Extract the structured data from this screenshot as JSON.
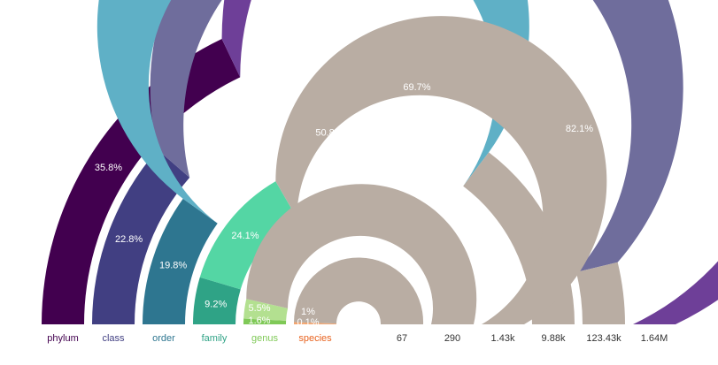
{
  "colors": {
    "remainder": "#b9ada3",
    "background": "#ffffff",
    "total_text": "#333333"
  },
  "chart_data": {
    "type": "radial-stacked-semicircle",
    "title": "",
    "unit": "percent",
    "rings": [
      {
        "category": "phylum",
        "segments": [
          35.8,
          82.1
        ],
        "segment_labels": [
          "35.8%",
          "82.1%"
        ],
        "colors": [
          "#42004f",
          "#6e3f98"
        ],
        "total": "1.64M"
      },
      {
        "category": "class",
        "segments": [
          22.8,
          69.7
        ],
        "segment_labels": [
          "22.8%",
          "69.7%"
        ],
        "colors": [
          "#413f82",
          "#6f6d9c"
        ],
        "total": "123.43k"
      },
      {
        "category": "order",
        "segments": [
          19.8,
          50.8
        ],
        "segment_labels": [
          "19.8%",
          "50.8%"
        ],
        "colors": [
          "#2e7690",
          "#5fb0c6"
        ],
        "total": "9.88k"
      },
      {
        "category": "family",
        "segments": [
          9.2,
          24.1
        ],
        "segment_labels": [
          "9.2%",
          "24.1%"
        ],
        "colors": [
          "#2fa386",
          "#54d6a4"
        ],
        "total": "1.43k"
      },
      {
        "category": "genus",
        "segments": [
          1.6,
          5.5
        ],
        "segment_labels": [
          "1.6%",
          "5.5%"
        ],
        "colors": [
          "#7fc957",
          "#b3e090"
        ],
        "total": "290"
      },
      {
        "category": "species",
        "segments": [
          0.1,
          1
        ],
        "segment_labels": [
          "0.1%",
          "1%"
        ],
        "colors": [
          "#e8621e",
          "#f4a36a"
        ],
        "total": "67"
      }
    ]
  }
}
